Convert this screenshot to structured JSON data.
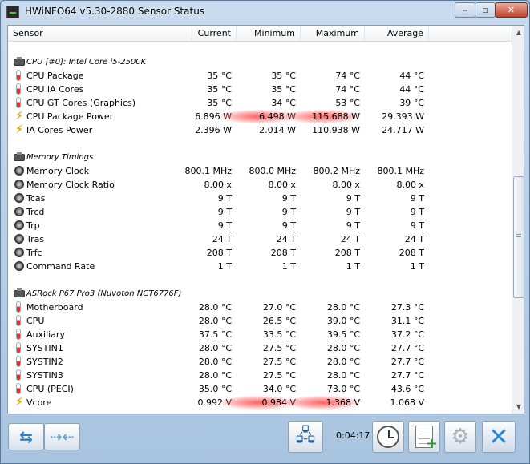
{
  "window": {
    "title": "HWiNFO64 v5.30-2880 Sensor Status",
    "min_label": "‒",
    "max_label": "▫",
    "close_label": "✕"
  },
  "columns": {
    "sensor": "Sensor",
    "current": "Current",
    "minimum": "Minimum",
    "maximum": "Maximum",
    "average": "Average"
  },
  "rows": [
    {
      "type": "blank"
    },
    {
      "type": "group",
      "icon": "cpu-chip-icon",
      "name": "CPU [#0]: Intel Core i5-2500K"
    },
    {
      "type": "sensor",
      "icon": "thermometer-icon",
      "name": "CPU Package",
      "current": "35 °C",
      "minimum": "35 °C",
      "maximum": "74 °C",
      "average": "44 °C"
    },
    {
      "type": "sensor",
      "icon": "thermometer-icon",
      "name": "CPU IA Cores",
      "current": "35 °C",
      "minimum": "35 °C",
      "maximum": "74 °C",
      "average": "44 °C"
    },
    {
      "type": "sensor",
      "icon": "thermometer-icon",
      "name": "CPU GT Cores (Graphics)",
      "current": "35 °C",
      "minimum": "34 °C",
      "maximum": "53 °C",
      "average": "39 °C"
    },
    {
      "type": "sensor",
      "icon": "lightning-icon",
      "name": "CPU Package Power",
      "current": "6.896 W",
      "minimum": "6.498 W",
      "maximum": "115.688 W",
      "average": "29.393 W",
      "hl_min": true,
      "hl_max": true
    },
    {
      "type": "sensor",
      "icon": "lightning-icon",
      "name": "IA Cores Power",
      "current": "2.396 W",
      "minimum": "2.014 W",
      "maximum": "110.938 W",
      "average": "24.717 W"
    },
    {
      "type": "blank"
    },
    {
      "type": "group",
      "icon": "cpu-chip-icon",
      "name": "Memory Timings"
    },
    {
      "type": "sensor",
      "icon": "dial-icon",
      "name": "Memory Clock",
      "current": "800.1 MHz",
      "minimum": "800.0 MHz",
      "maximum": "800.2 MHz",
      "average": "800.1 MHz"
    },
    {
      "type": "sensor",
      "icon": "dial-icon",
      "name": "Memory Clock Ratio",
      "current": "8.00 x",
      "minimum": "8.00 x",
      "maximum": "8.00 x",
      "average": "8.00 x"
    },
    {
      "type": "sensor",
      "icon": "dial-icon",
      "name": "Tcas",
      "current": "9 T",
      "minimum": "9 T",
      "maximum": "9 T",
      "average": "9 T"
    },
    {
      "type": "sensor",
      "icon": "dial-icon",
      "name": "Trcd",
      "current": "9 T",
      "minimum": "9 T",
      "maximum": "9 T",
      "average": "9 T"
    },
    {
      "type": "sensor",
      "icon": "dial-icon",
      "name": "Trp",
      "current": "9 T",
      "minimum": "9 T",
      "maximum": "9 T",
      "average": "9 T"
    },
    {
      "type": "sensor",
      "icon": "dial-icon",
      "name": "Tras",
      "current": "24 T",
      "minimum": "24 T",
      "maximum": "24 T",
      "average": "24 T"
    },
    {
      "type": "sensor",
      "icon": "dial-icon",
      "name": "Trfc",
      "current": "208 T",
      "minimum": "208 T",
      "maximum": "208 T",
      "average": "208 T"
    },
    {
      "type": "sensor",
      "icon": "dial-icon",
      "name": "Command Rate",
      "current": "1 T",
      "minimum": "1 T",
      "maximum": "1 T",
      "average": "1 T"
    },
    {
      "type": "blank"
    },
    {
      "type": "group",
      "icon": "cpu-chip-icon",
      "name": "ASRock P67 Pro3 (Nuvoton NCT6776F)"
    },
    {
      "type": "sensor",
      "icon": "thermometer-icon",
      "name": "Motherboard",
      "current": "28.0 °C",
      "minimum": "27.0 °C",
      "maximum": "28.0 °C",
      "average": "27.3 °C"
    },
    {
      "type": "sensor",
      "icon": "thermometer-icon",
      "name": "CPU",
      "current": "28.0 °C",
      "minimum": "26.5 °C",
      "maximum": "39.0 °C",
      "average": "31.1 °C"
    },
    {
      "type": "sensor",
      "icon": "thermometer-icon",
      "name": "Auxiliary",
      "current": "37.5 °C",
      "minimum": "33.5 °C",
      "maximum": "39.5 °C",
      "average": "37.2 °C"
    },
    {
      "type": "sensor",
      "icon": "thermometer-icon",
      "name": "SYSTIN1",
      "current": "28.0 °C",
      "minimum": "27.5 °C",
      "maximum": "28.0 °C",
      "average": "27.7 °C"
    },
    {
      "type": "sensor",
      "icon": "thermometer-icon",
      "name": "SYSTIN2",
      "current": "28.0 °C",
      "minimum": "27.5 °C",
      "maximum": "28.0 °C",
      "average": "27.7 °C"
    },
    {
      "type": "sensor",
      "icon": "thermometer-icon",
      "name": "SYSTIN3",
      "current": "28.0 °C",
      "minimum": "27.5 °C",
      "maximum": "28.0 °C",
      "average": "27.7 °C"
    },
    {
      "type": "sensor",
      "icon": "thermometer-icon",
      "name": "CPU (PECI)",
      "current": "35.0 °C",
      "minimum": "34.0 °C",
      "maximum": "73.0 °C",
      "average": "43.6 °C"
    },
    {
      "type": "sensor",
      "icon": "lightning-icon",
      "name": "Vcore",
      "current": "0.992 V",
      "minimum": "0.984 V",
      "maximum": "1.368 V",
      "average": "1.068 V",
      "hl_min": true,
      "hl_max": true
    }
  ],
  "toolbar": {
    "timer": "0:04:17",
    "icons": {
      "scroll_left": "double-arrow-left-right-icon",
      "scroll_right": "double-arrow-inward-icon",
      "network": "network-computers-icon",
      "clock": "clock-icon",
      "report": "add-report-icon",
      "settings": "gear-icon",
      "close": "close-icon"
    }
  },
  "colors": {
    "highlight": "#ff5a5a",
    "titlebar": "#b9cfe7",
    "close_button": "#2c86d8"
  }
}
